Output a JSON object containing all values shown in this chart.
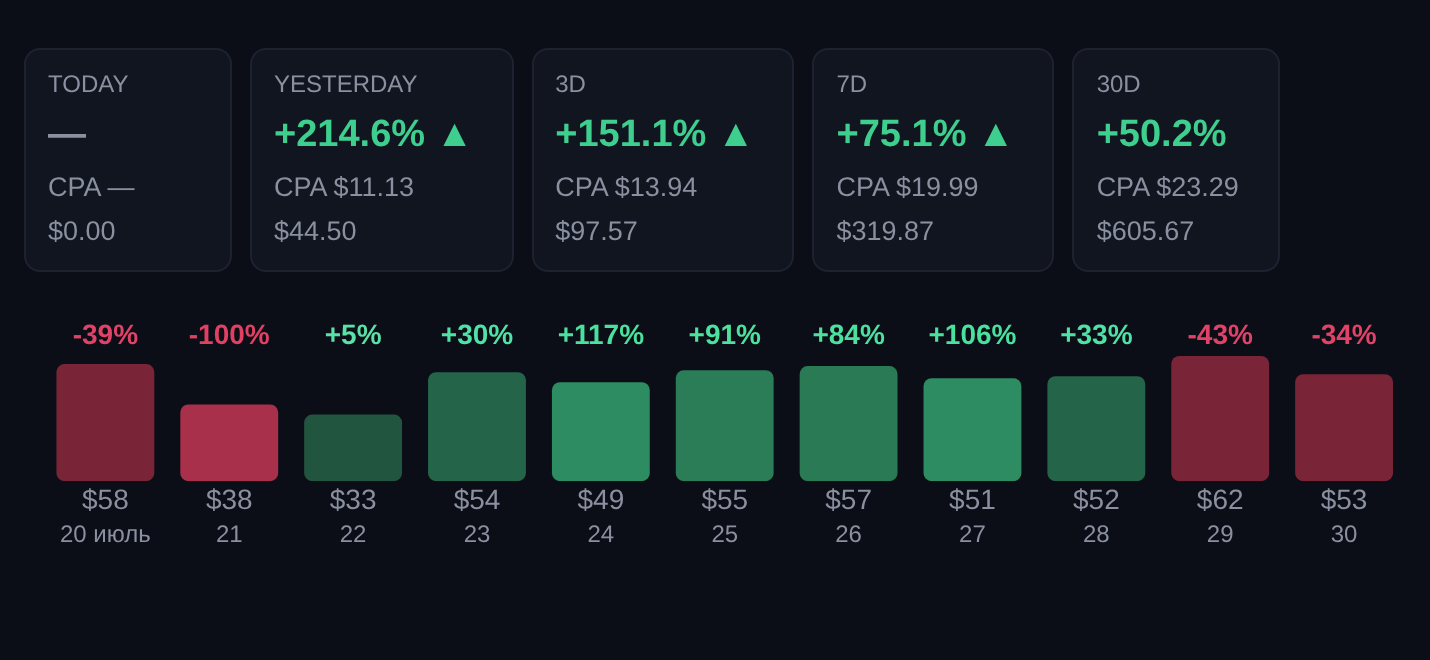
{
  "chart_data": [
    {
      "type": "other",
      "annotations": [
        "TODAY",
        "—",
        "CPA —",
        "$0.00",
        "YESTERDAY",
        "+214.6% ▲",
        "CPA $11.13",
        "$44.50",
        "3D",
        "+151.1% ▲",
        "CPA $13.94",
        "$97.57",
        "7D",
        "+75.1% ▲",
        "CPA $19.99",
        "$319.87",
        "30D",
        "+50.2%",
        "CPA $23.29",
        "$605.67"
      ],
      "colors": [
        "#8a90a0",
        "#3ecf8e",
        "#3ecf8e",
        "#3ecf8e",
        "#3ecf8e"
      ]
    },
    {
      "type": "bar",
      "categories": [
        "20 июль",
        "21",
        "22",
        "23",
        "24",
        "25",
        "26",
        "27",
        "28",
        "29",
        "30"
      ],
      "values": [
        58,
        38,
        33,
        54,
        49,
        55,
        57,
        51,
        52,
        62,
        53
      ],
      "colors": [
        "#7a2438",
        "#a8304a",
        "#22553f",
        "#24654a",
        "#2e8c62",
        "#2b7d58",
        "#2a7a56",
        "#2e8c62",
        "#24654a",
        "#7a2438",
        "#7a2438"
      ],
      "value_labels": [
        "$58",
        "$38",
        "$33",
        "$54",
        "$49",
        "$55",
        "$57",
        "$51",
        "$52",
        "$62",
        "$53"
      ],
      "annotations": [
        "-39%",
        "-100%",
        "+5%",
        "+30%",
        "+117%",
        "+91%",
        "+84%",
        "+106%",
        "+33%",
        "-43%",
        "-34%"
      ]
    }
  ]
}
